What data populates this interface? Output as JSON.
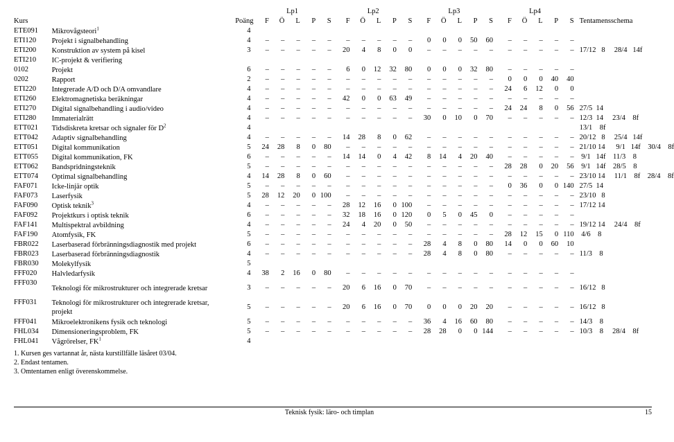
{
  "headers": {
    "kurs": "Kurs",
    "poang": "Poäng",
    "lp": [
      "Lp1",
      "Lp2",
      "Lp3",
      "Lp4"
    ],
    "cols": [
      "F",
      "Ö",
      "L",
      "P",
      "S"
    ],
    "ts": "Tentamensschema"
  },
  "rows": [
    {
      "c": "ETE091",
      "n": "Mikrovågsteori",
      "sup": "1",
      "p": "4",
      "v": [
        "",
        "",
        "",
        "",
        "",
        "",
        "",
        "",
        "",
        "",
        "",
        "",
        "",
        "",
        "",
        "",
        "",
        "",
        "",
        ""
      ],
      "t": ""
    },
    {
      "c": "ETI120",
      "n": "Projekt i signalbehandling",
      "p": "4",
      "v": [
        "–",
        "–",
        "–",
        "–",
        "–",
        "–",
        "–",
        "–",
        "–",
        "–",
        "0",
        "0",
        "0",
        "50",
        "60",
        "–",
        "–",
        "–",
        "–",
        "–"
      ],
      "t": ""
    },
    {
      "c": "ETI200",
      "n": "Konstruktion av system på kisel",
      "p": "3",
      "v": [
        "–",
        "–",
        "–",
        "–",
        "–",
        "20",
        "4",
        "8",
        "0",
        "0",
        "–",
        "–",
        "–",
        "–",
        "–",
        "–",
        "–",
        "–",
        "–",
        "–"
      ],
      "t": "17/12   8     28/4   14f"
    },
    {
      "c": "ETI210",
      "n": "IC-projekt & verifiering",
      "p": "",
      "v": [
        "",
        "",
        "",
        "",
        "",
        "",
        "",
        "",
        "",
        "",
        "",
        "",
        "",
        "",
        "",
        "",
        "",
        "",
        "",
        ""
      ],
      "t": ""
    },
    {
      "c": "0102",
      "n": "Projekt",
      "p": "6",
      "v": [
        "–",
        "–",
        "–",
        "–",
        "–",
        "6",
        "0",
        "12",
        "32",
        "80",
        "0",
        "0",
        "0",
        "32",
        "80",
        "–",
        "–",
        "–",
        "–",
        "–"
      ],
      "t": ""
    },
    {
      "c": "0202",
      "n": "Rapport",
      "p": "2",
      "v": [
        "–",
        "–",
        "–",
        "–",
        "–",
        "–",
        "–",
        "–",
        "–",
        "–",
        "–",
        "–",
        "–",
        "–",
        "–",
        "0",
        "0",
        "0",
        "40",
        "40"
      ],
      "t": ""
    },
    {
      "c": "ETI220",
      "n": "Integrerade A/D och D/A omvandlare",
      "p": "4",
      "v": [
        "–",
        "–",
        "–",
        "–",
        "–",
        "–",
        "–",
        "–",
        "–",
        "–",
        "–",
        "–",
        "–",
        "–",
        "–",
        "24",
        "6",
        "12",
        "0",
        "0"
      ],
      "t": ""
    },
    {
      "c": "ETI260",
      "n": "Elektromagnetiska beräkningar",
      "p": "4",
      "v": [
        "–",
        "–",
        "–",
        "–",
        "–",
        "42",
        "0",
        "0",
        "63",
        "49",
        "–",
        "–",
        "–",
        "–",
        "–",
        "–",
        "–",
        "–",
        "–",
        "–"
      ],
      "t": ""
    },
    {
      "c": "ETI270",
      "n": "Digital signalbehandling i audio/video",
      "p": "4",
      "v": [
        "–",
        "–",
        "–",
        "–",
        "–",
        "–",
        "–",
        "–",
        "–",
        "–",
        "–",
        "–",
        "–",
        "–",
        "–",
        "24",
        "24",
        "8",
        "0",
        "56"
      ],
      "t": "27/5  14"
    },
    {
      "c": "ETI280",
      "n": "Immaterialrätt",
      "p": "4",
      "v": [
        "–",
        "–",
        "–",
        "–",
        "–",
        "–",
        "–",
        "–",
        "–",
        "–",
        "30",
        "0",
        "10",
        "0",
        "70",
        "–",
        "–",
        "–",
        "–",
        "–"
      ],
      "t": "12/3  14     23/4    8f"
    },
    {
      "c": "ETT021",
      "n": "Tidsdiskreta kretsar och signaler för D",
      "sup": "2",
      "p": "4",
      "v": [
        "",
        "",
        "",
        "",
        "",
        "",
        "",
        "",
        "",
        "",
        "",
        "",
        "",
        "",
        "",
        "",
        "",
        "",
        "",
        ""
      ],
      "t": "13/1    8f"
    },
    {
      "c": "ETT042",
      "n": "Adaptiv signalbehandling",
      "p": "4",
      "v": [
        "–",
        "–",
        "–",
        "–",
        "–",
        "14",
        "28",
        "8",
        "0",
        "62",
        "–",
        "–",
        "–",
        "–",
        "–",
        "–",
        "–",
        "–",
        "–",
        "–"
      ],
      "t": "20/12   8     25/4   14f"
    },
    {
      "c": "ETT051",
      "n": "Digital kommunikation",
      "p": "5",
      "v": [
        "24",
        "28",
        "8",
        "0",
        "80",
        "–",
        "–",
        "–",
        "–",
        "–",
        "–",
        "–",
        "–",
        "–",
        "–",
        "–",
        "–",
        "–",
        "–",
        "–"
      ],
      "t": "21/10 14      9/1   14f    30/4    8f"
    },
    {
      "c": "ETT055",
      "n": "Digital kommunikation, FK",
      "p": "6",
      "v": [
        "–",
        "–",
        "–",
        "–",
        "–",
        "14",
        "14",
        "0",
        "4",
        "42",
        "8",
        "14",
        "4",
        "20",
        "40",
        "–",
        "–",
        "–",
        "–",
        "–"
      ],
      "t": " 9/1   14f    11/3    8"
    },
    {
      "c": "ETT062",
      "n": "Bandspridningsteknik",
      "p": "5",
      "v": [
        "–",
        "–",
        "–",
        "–",
        "–",
        "–",
        "–",
        "–",
        "–",
        "–",
        "–",
        "–",
        "–",
        "–",
        "–",
        "28",
        "28",
        "0",
        "20",
        "56"
      ],
      "t": " 9/1   14f    28/5    8"
    },
    {
      "c": "ETT074",
      "n": "Optimal signalbehandling",
      "p": "4",
      "v": [
        "14",
        "28",
        "8",
        "0",
        "60",
        "–",
        "–",
        "–",
        "–",
        "–",
        "–",
        "–",
        "–",
        "–",
        "–",
        "–",
        "–",
        "–",
        "–",
        "–"
      ],
      "t": "23/10 14     11/1    8f    28/4    8f"
    },
    {
      "c": "FAF071",
      "n": "Icke-linjär optik",
      "p": "5",
      "v": [
        "–",
        "–",
        "–",
        "–",
        "–",
        "–",
        "–",
        "–",
        "–",
        "–",
        "–",
        "–",
        "–",
        "–",
        "–",
        "0",
        "36",
        "0",
        "0",
        "140"
      ],
      "t": "27/5  14"
    },
    {
      "c": "FAF073",
      "n": "Laserfysik",
      "p": "5",
      "v": [
        "28",
        "12",
        "20",
        "0",
        "100",
        "–",
        "–",
        "–",
        "–",
        "–",
        "–",
        "–",
        "–",
        "–",
        "–",
        "–",
        "–",
        "–",
        "–",
        "–"
      ],
      "t": "23/10   8"
    },
    {
      "c": "FAF090",
      "n": "Optisk teknik",
      "sup": "3",
      "p": "4",
      "v": [
        "–",
        "–",
        "–",
        "–",
        "–",
        "28",
        "12",
        "16",
        "0",
        "100",
        "–",
        "–",
        "–",
        "–",
        "–",
        "–",
        "–",
        "–",
        "–",
        "–"
      ],
      "t": "17/12 14"
    },
    {
      "c": "FAF092",
      "n": "Projektkurs i optisk teknik",
      "p": "6",
      "v": [
        "–",
        "–",
        "–",
        "–",
        "–",
        "32",
        "18",
        "16",
        "0",
        "120",
        "0",
        "5",
        "0",
        "45",
        "0",
        "–",
        "–",
        "–",
        "–",
        "–"
      ],
      "t": ""
    },
    {
      "c": "FAF141",
      "n": "Multispektral avbildning",
      "p": "4",
      "v": [
        "–",
        "–",
        "–",
        "–",
        "–",
        "24",
        "4",
        "20",
        "0",
        "50",
        "–",
        "–",
        "–",
        "–",
        "–",
        "–",
        "–",
        "–",
        "–",
        "–"
      ],
      "t": "19/12 14     24/4    8f"
    },
    {
      "c": "FAF190",
      "n": "Atomfysik, FK",
      "p": "5",
      "v": [
        "–",
        "–",
        "–",
        "–",
        "–",
        "–",
        "–",
        "–",
        "–",
        "–",
        "–",
        "–",
        "–",
        "–",
        "–",
        "28",
        "12",
        "15",
        "0",
        "110"
      ],
      "t": " 4/6    8"
    },
    {
      "c": "FBR022",
      "n": "Laserbaserad förbränningsdiagnostik med projekt",
      "p": "6",
      "v": [
        "–",
        "–",
        "–",
        "–",
        "–",
        "–",
        "–",
        "–",
        "–",
        "–",
        "28",
        "4",
        "8",
        "0",
        "80",
        "14",
        "0",
        "0",
        "60",
        "10"
      ],
      "t": ""
    },
    {
      "c": "FBR023",
      "n": "Laserbaserad förbränningsdiagnostik",
      "p": "4",
      "v": [
        "–",
        "–",
        "–",
        "–",
        "–",
        "–",
        "–",
        "–",
        "–",
        "–",
        "28",
        "4",
        "8",
        "0",
        "80",
        "–",
        "–",
        "–",
        "–",
        "–"
      ],
      "t": "11/3    8"
    },
    {
      "c": "FBR030",
      "n": "Molekylfysik",
      "p": "5",
      "v": [
        "",
        "",
        "",
        "",
        "",
        "",
        "",
        "",
        "",
        "",
        "",
        "",
        "",
        "",
        "",
        "",
        "",
        "",
        "",
        ""
      ],
      "t": ""
    },
    {
      "c": "FFF020",
      "n": "Halvledarfysik",
      "p": "4",
      "v": [
        "38",
        "2",
        "16",
        "0",
        "80",
        "–",
        "–",
        "–",
        "–",
        "–",
        "–",
        "–",
        "–",
        "–",
        "–",
        "–",
        "–",
        "–",
        "–",
        "–"
      ],
      "t": ""
    },
    {
      "c": "FFF030",
      "n": "Teknologi för mikrostrukturer och integrerade kretsar",
      "p": "3",
      "v": [
        "–",
        "–",
        "–",
        "–",
        "–",
        "20",
        "6",
        "16",
        "0",
        "70",
        "–",
        "–",
        "–",
        "–",
        "–",
        "–",
        "–",
        "–",
        "–",
        "–"
      ],
      "t": "16/12   8",
      "tall": 1
    },
    {
      "c": "FFF031",
      "n": "Teknologi för mikrostrukturer och integrerade kretsar, projekt",
      "p": "5",
      "v": [
        "–",
        "–",
        "–",
        "–",
        "–",
        "20",
        "6",
        "16",
        "0",
        "70",
        "0",
        "0",
        "0",
        "20",
        "20",
        "–",
        "–",
        "–",
        "–",
        "–"
      ],
      "t": "16/12   8",
      "tall": 1
    },
    {
      "c": "FFF041",
      "n": "Mikroelektronikens fysik och teknologi",
      "p": "5",
      "v": [
        "–",
        "–",
        "–",
        "–",
        "–",
        "–",
        "–",
        "–",
        "–",
        "–",
        "36",
        "4",
        "16",
        "60",
        "80",
        "–",
        "–",
        "–",
        "–",
        "–"
      ],
      "t": "14/3    8"
    },
    {
      "c": "FHL034",
      "n": "Dimensioneringsproblem, FK",
      "p": "5",
      "v": [
        "–",
        "–",
        "–",
        "–",
        "–",
        "–",
        "–",
        "–",
        "–",
        "–",
        "28",
        "28",
        "0",
        "0",
        "144",
        "–",
        "–",
        "–",
        "–",
        "–"
      ],
      "t": "10/3    8     28/4    8f"
    },
    {
      "c": "FHL041",
      "n": "Vågrörelser, FK",
      "sup": "1",
      "p": "4",
      "v": [
        "",
        "",
        "",
        "",
        "",
        "",
        "",
        "",
        "",
        "",
        "",
        "",
        "",
        "",
        "",
        "",
        "",
        "",
        "",
        ""
      ],
      "t": ""
    }
  ],
  "notes": [
    "1. Kursen ges vartannat år, nästa kurstillfälle läsåret 03/04.",
    "2. Endast tentamen.",
    "3. Omtentamen enligt överenskommelse."
  ],
  "footer": {
    "title": "Teknisk fysik: läro- och timplan",
    "page": "15"
  }
}
